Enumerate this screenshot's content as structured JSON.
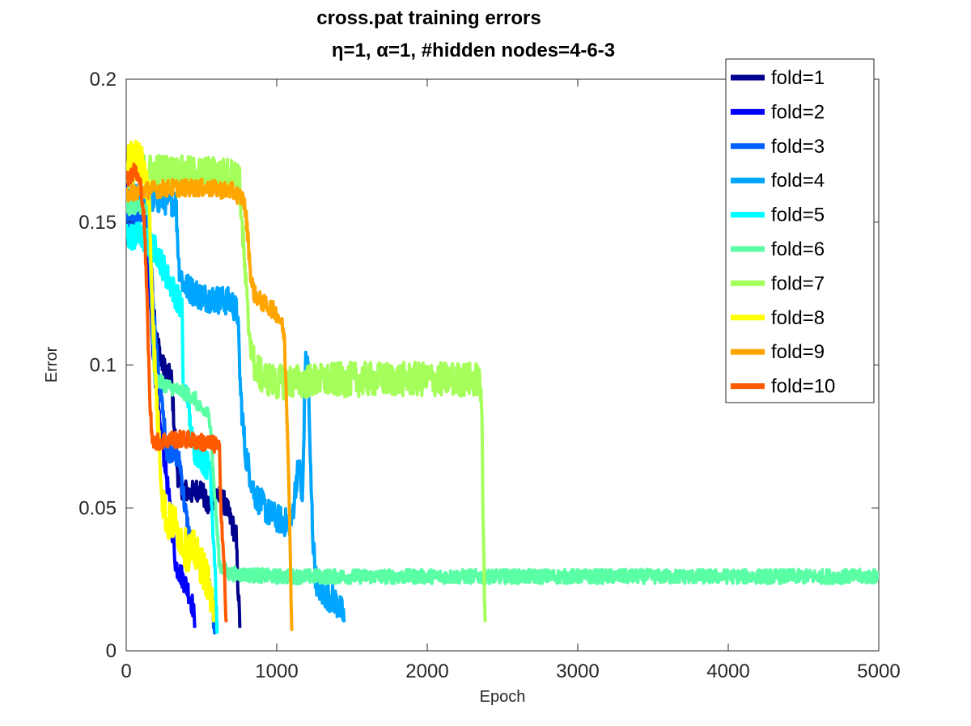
{
  "chart_data": {
    "type": "line",
    "title": "cross.pat training errors",
    "subtitle": "η=1,   α=1, #hidden nodes=4-6-3",
    "xlabel": "Epoch",
    "ylabel": "Error",
    "xlim": [
      0,
      5000
    ],
    "ylim": [
      0,
      0.2
    ],
    "xticks": [
      0,
      1000,
      2000,
      3000,
      4000,
      5000
    ],
    "xtick_labels": [
      "0",
      "1000",
      "2000",
      "3000",
      "4000",
      "5000"
    ],
    "yticks": [
      0,
      0.05,
      0.1,
      0.15,
      0.2
    ],
    "ytick_labels": [
      "0",
      "0.05",
      "0.1",
      "0.15",
      "0.2"
    ],
    "grid": false,
    "legend_position": "top-right",
    "series": [
      {
        "name": "fold=1",
        "color": "#00008f",
        "noise": 0.004,
        "points": [
          [
            0,
            0.16
          ],
          [
            60,
            0.158
          ],
          [
            120,
            0.155
          ],
          [
            160,
            0.135
          ],
          [
            200,
            0.11
          ],
          [
            240,
            0.1
          ],
          [
            300,
            0.095
          ],
          [
            330,
            0.07
          ],
          [
            350,
            0.058
          ],
          [
            420,
            0.055
          ],
          [
            500,
            0.057
          ],
          [
            540,
            0.05
          ],
          [
            600,
            0.055
          ],
          [
            650,
            0.052
          ],
          [
            700,
            0.045
          ],
          [
            730,
            0.04
          ],
          [
            745,
            0.02
          ],
          [
            755,
            0.008
          ]
        ]
      },
      {
        "name": "fold=2",
        "color": "#0000ff",
        "noise": 0.004,
        "points": [
          [
            0,
            0.16
          ],
          [
            60,
            0.158
          ],
          [
            120,
            0.156
          ],
          [
            150,
            0.13
          ],
          [
            180,
            0.105
          ],
          [
            220,
            0.08
          ],
          [
            260,
            0.065
          ],
          [
            300,
            0.045
          ],
          [
            330,
            0.03
          ],
          [
            380,
            0.025
          ],
          [
            420,
            0.02
          ],
          [
            445,
            0.015
          ],
          [
            455,
            0.008
          ]
        ]
      },
      {
        "name": "fold=3",
        "color": "#0060ff",
        "noise": 0.004,
        "points": [
          [
            0,
            0.15
          ],
          [
            80,
            0.152
          ],
          [
            140,
            0.15
          ],
          [
            170,
            0.13
          ],
          [
            200,
            0.105
          ],
          [
            240,
            0.085
          ],
          [
            270,
            0.07
          ],
          [
            320,
            0.07
          ],
          [
            360,
            0.065
          ],
          [
            390,
            0.05
          ],
          [
            420,
            0.04
          ],
          [
            470,
            0.033
          ],
          [
            520,
            0.025
          ],
          [
            560,
            0.02
          ],
          [
            580,
            0.012
          ],
          [
            590,
            0.008
          ]
        ]
      },
      {
        "name": "fold=4",
        "color": "#00a5ff",
        "noise": 0.005,
        "points": [
          [
            0,
            0.158
          ],
          [
            200,
            0.158
          ],
          [
            330,
            0.157
          ],
          [
            350,
            0.135
          ],
          [
            380,
            0.128
          ],
          [
            500,
            0.124
          ],
          [
            700,
            0.122
          ],
          [
            740,
            0.118
          ],
          [
            760,
            0.09
          ],
          [
            790,
            0.07
          ],
          [
            850,
            0.055
          ],
          [
            950,
            0.048
          ],
          [
            1050,
            0.045
          ],
          [
            1100,
            0.045
          ],
          [
            1130,
            0.06
          ],
          [
            1150,
            0.065
          ],
          [
            1170,
            0.05
          ],
          [
            1190,
            0.1
          ],
          [
            1210,
            0.1
          ],
          [
            1220,
            0.07
          ],
          [
            1240,
            0.04
          ],
          [
            1260,
            0.025
          ],
          [
            1300,
            0.02
          ],
          [
            1380,
            0.018
          ],
          [
            1440,
            0.013
          ],
          [
            1450,
            0.01
          ]
        ]
      },
      {
        "name": "fold=5",
        "color": "#00ffff",
        "noise": 0.005,
        "points": [
          [
            0,
            0.145
          ],
          [
            100,
            0.145
          ],
          [
            200,
            0.14
          ],
          [
            280,
            0.13
          ],
          [
            370,
            0.12
          ],
          [
            380,
            0.09
          ],
          [
            410,
            0.09
          ],
          [
            430,
            0.075
          ],
          [
            460,
            0.07
          ],
          [
            500,
            0.068
          ],
          [
            530,
            0.065
          ],
          [
            560,
            0.065
          ],
          [
            570,
            0.05
          ],
          [
            590,
            0.03
          ],
          [
            600,
            0.012
          ],
          [
            605,
            0.01
          ]
        ]
      },
      {
        "name": "fold=6",
        "color": "#5affa5",
        "noise": 0.0025,
        "points": [
          [
            0,
            0.155
          ],
          [
            150,
            0.155
          ],
          [
            170,
            0.12
          ],
          [
            190,
            0.095
          ],
          [
            300,
            0.092
          ],
          [
            400,
            0.09
          ],
          [
            460,
            0.088
          ],
          [
            480,
            0.085
          ],
          [
            540,
            0.083
          ],
          [
            560,
            0.08
          ],
          [
            580,
            0.06
          ],
          [
            620,
            0.03
          ],
          [
            680,
            0.027
          ],
          [
            1000,
            0.026
          ],
          [
            2000,
            0.026
          ],
          [
            3000,
            0.026
          ],
          [
            4000,
            0.026
          ],
          [
            5000,
            0.026
          ]
        ]
      },
      {
        "name": "fold=7",
        "color": "#a5ff5a",
        "noise": 0.006,
        "points": [
          [
            0,
            0.168
          ],
          [
            200,
            0.168
          ],
          [
            400,
            0.167
          ],
          [
            600,
            0.167
          ],
          [
            750,
            0.166
          ],
          [
            780,
            0.14
          ],
          [
            810,
            0.115
          ],
          [
            850,
            0.1
          ],
          [
            900,
            0.096
          ],
          [
            1000,
            0.094
          ],
          [
            1500,
            0.095
          ],
          [
            2000,
            0.095
          ],
          [
            2300,
            0.095
          ],
          [
            2340,
            0.095
          ],
          [
            2360,
            0.09
          ],
          [
            2370,
            0.05
          ],
          [
            2380,
            0.02
          ],
          [
            2385,
            0.01
          ]
        ]
      },
      {
        "name": "fold=8",
        "color": "#ffff00",
        "noise": 0.007,
        "points": [
          [
            0,
            0.172
          ],
          [
            100,
            0.172
          ],
          [
            150,
            0.16
          ],
          [
            170,
            0.13
          ],
          [
            190,
            0.1
          ],
          [
            210,
            0.08
          ],
          [
            240,
            0.055
          ],
          [
            270,
            0.045
          ],
          [
            320,
            0.045
          ],
          [
            360,
            0.04
          ],
          [
            400,
            0.035
          ],
          [
            450,
            0.035
          ],
          [
            500,
            0.03
          ],
          [
            540,
            0.025
          ],
          [
            570,
            0.015
          ],
          [
            580,
            0.01
          ]
        ]
      },
      {
        "name": "fold=9",
        "color": "#ffa500",
        "noise": 0.003,
        "points": [
          [
            0,
            0.16
          ],
          [
            100,
            0.161
          ],
          [
            300,
            0.162
          ],
          [
            500,
            0.162
          ],
          [
            700,
            0.161
          ],
          [
            780,
            0.158
          ],
          [
            800,
            0.15
          ],
          [
            830,
            0.13
          ],
          [
            850,
            0.125
          ],
          [
            900,
            0.122
          ],
          [
            960,
            0.12
          ],
          [
            1000,
            0.118
          ],
          [
            1030,
            0.115
          ],
          [
            1050,
            0.11
          ],
          [
            1070,
            0.08
          ],
          [
            1085,
            0.05
          ],
          [
            1095,
            0.02
          ],
          [
            1100,
            0.007
          ]
        ]
      },
      {
        "name": "fold=10",
        "color": "#ff5a00",
        "noise": 0.003,
        "points": [
          [
            0,
            0.165
          ],
          [
            60,
            0.168
          ],
          [
            100,
            0.162
          ],
          [
            120,
            0.15
          ],
          [
            140,
            0.12
          ],
          [
            155,
            0.09
          ],
          [
            170,
            0.075
          ],
          [
            200,
            0.073
          ],
          [
            300,
            0.074
          ],
          [
            400,
            0.074
          ],
          [
            500,
            0.073
          ],
          [
            600,
            0.072
          ],
          [
            620,
            0.07
          ],
          [
            630,
            0.05
          ],
          [
            650,
            0.03
          ],
          [
            660,
            0.015
          ],
          [
            665,
            0.01
          ]
        ]
      }
    ]
  }
}
